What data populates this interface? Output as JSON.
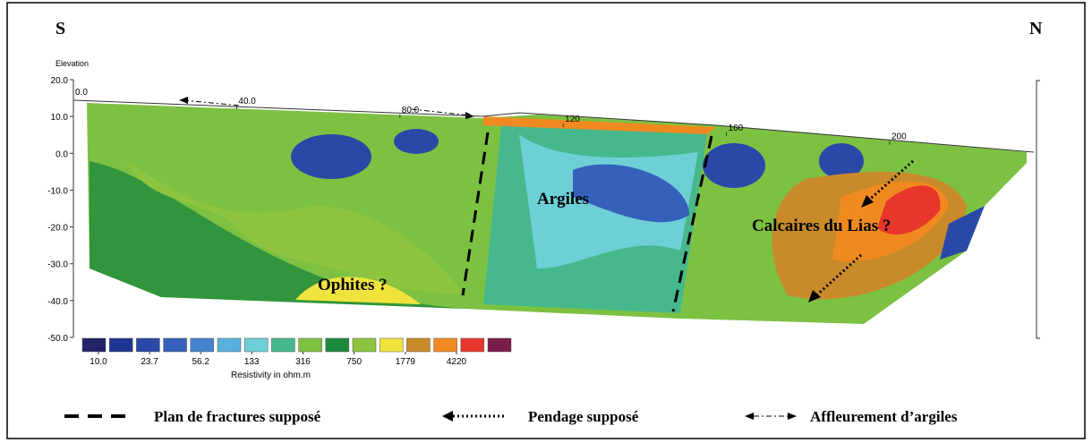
{
  "chart_data": {
    "type": "contour",
    "corner_labels": [
      "S",
      "N"
    ],
    "y_label": "Elevation",
    "xlim": [
      0,
      234
    ],
    "ylim": [
      -50,
      20
    ],
    "xticks": [
      {
        "value": 0,
        "label": "0.0"
      },
      {
        "value": 40,
        "label": "40.0"
      },
      {
        "value": 80,
        "label": "80.0"
      },
      120,
      160,
      200
    ],
    "yticks": [
      {
        "value": 20,
        "label": "20.0"
      },
      {
        "value": 10,
        "label": "10.0"
      },
      {
        "value": 0,
        "label": "0.0"
      },
      {
        "value": -10,
        "label": "-10.0"
      },
      {
        "value": -20,
        "label": "-20.0"
      },
      {
        "value": -30,
        "label": "-30.0"
      },
      {
        "value": -40,
        "label": "-40.0"
      },
      {
        "value": -50,
        "label": "-50.0"
      }
    ],
    "color_scale": {
      "label": "Resistivity in ohm.m",
      "log": true,
      "ticks": [
        {
          "value": 10,
          "label": "10.0"
        },
        23.7,
        56.2,
        133,
        316,
        750,
        1779,
        4220
      ],
      "colors": [
        "#22236b",
        "#1f3594",
        "#2a48a8",
        "#3561bb",
        "#4584cc",
        "#5ab0dc",
        "#6ecfd6",
        "#47b88c",
        "#7dc142",
        "#1d8a3b",
        "#8cc43f",
        "#f0e43c",
        "#c98a2a",
        "#f08a20",
        "#e8362a",
        "#7a1c4a"
      ]
    },
    "annotations": [
      "Argiles",
      "Calcaires du Lias ?",
      "Ophites ?"
    ],
    "legend": [
      "Plan de fractures supposé",
      "Pendage supposé",
      "Affleurement d’argiles"
    ]
  }
}
